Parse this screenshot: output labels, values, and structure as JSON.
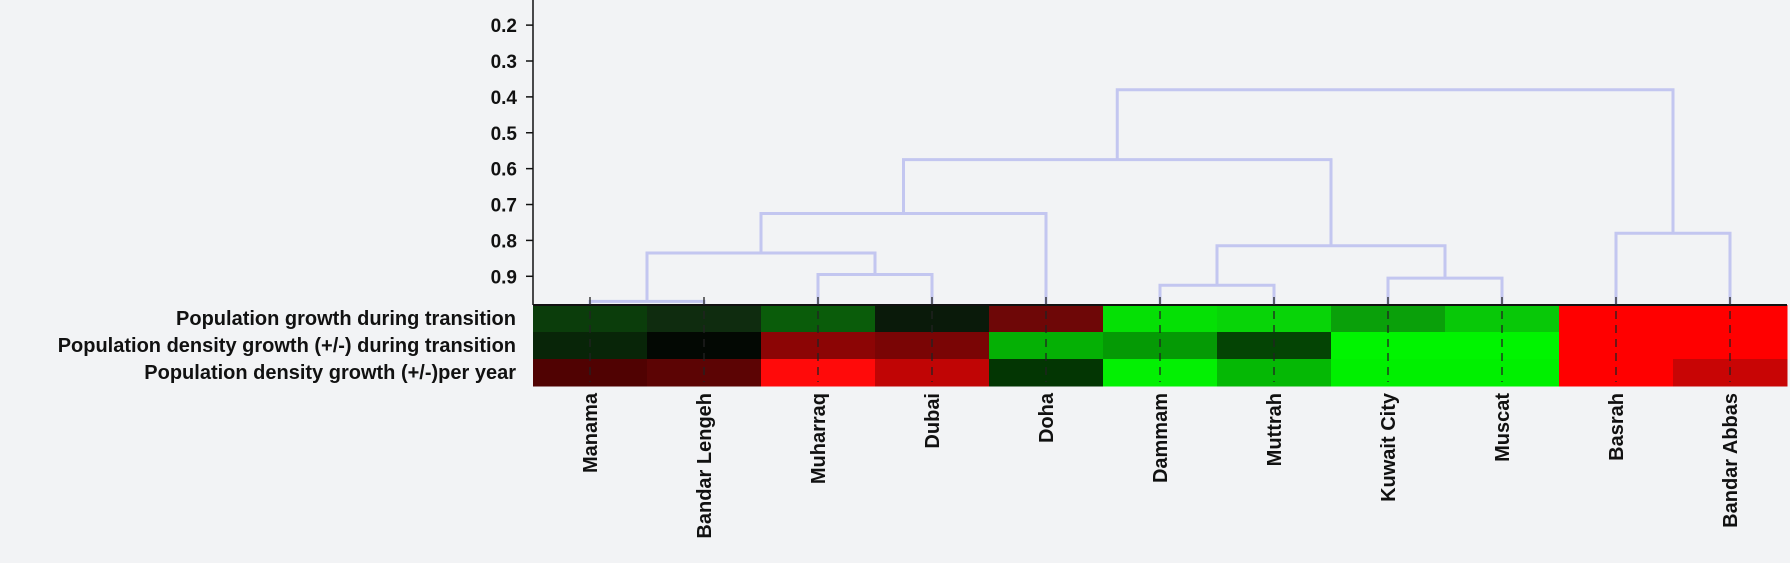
{
  "chart_data": {
    "type": "heatmap",
    "title": "",
    "xlabel": "",
    "ylabel": "",
    "dendrogram": {
      "axis_ticks": [
        "0.2",
        "0.3",
        "0.4",
        "0.5",
        "0.6",
        "0.7",
        "0.8",
        "0.9"
      ],
      "axis_range": [
        0.13,
        0.98
      ],
      "merges": [
        {
          "left": "Manama",
          "right": "Bandar Lengeh",
          "height": 0.97
        },
        {
          "left": "Muharraq",
          "right": "Dubai",
          "height": 0.895
        },
        {
          "left": "Dammam",
          "right": "Muttrah",
          "height": 0.925
        },
        {
          "left": "Kuwait City",
          "right": "Muscat",
          "height": 0.905
        },
        {
          "left": "Basrah",
          "right": "Bandar Abbas",
          "height": 0.78
        },
        {
          "left": [
            "Manama",
            "Bandar Lengeh"
          ],
          "right": [
            "Muharraq",
            "Dubai"
          ],
          "height": 0.835
        },
        {
          "left": [
            "Dammam",
            "Muttrah"
          ],
          "right": [
            "Kuwait City",
            "Muscat"
          ],
          "height": 0.815
        },
        {
          "left": [
            "Manama",
            "Bandar Lengeh",
            "Muharraq",
            "Dubai"
          ],
          "right": "Doha",
          "height": 0.725
        },
        {
          "left": [
            "Manama",
            "Bandar Lengeh",
            "Muharraq",
            "Dubai",
            "Doha"
          ],
          "right": [
            "Dammam",
            "Muttrah",
            "Kuwait City",
            "Muscat"
          ],
          "height": 0.575
        },
        {
          "left": [
            "Manama",
            "Bandar Lengeh",
            "Muharraq",
            "Dubai",
            "Doha",
            "Dammam",
            "Muttrah",
            "Kuwait City",
            "Muscat"
          ],
          "right": [
            "Basrah",
            "Bandar Abbas"
          ],
          "height": 0.38
        }
      ]
    },
    "columns": [
      "Manama",
      "Bandar Lengeh",
      "Muharraq",
      "Dubai",
      "Doha",
      "Dammam",
      "Muttrah",
      "Kuwait City",
      "Muscat",
      "Basrah",
      "Bandar Abbas"
    ],
    "rows": [
      {
        "label": "Population growth  during transition",
        "colors": [
          "#0b3d0b",
          "#0f2c0f",
          "#0a5c0a",
          "#0a1a0a",
          "#6e0707",
          "#05e005",
          "#08d408",
          "#0aa00a",
          "#08c808",
          "#ff0000",
          "#ff0000"
        ]
      },
      {
        "label": "Population density growth (+/-) during transition",
        "colors": [
          "#082508",
          "#030803",
          "#8c0505",
          "#7a0505",
          "#05b005",
          "#059a05",
          "#044404",
          "#00f400",
          "#00f400",
          "#ff0000",
          "#ff0000"
        ]
      },
      {
        "label": "Population density growth (+/-)per year",
        "colors": [
          "#500202",
          "#5c0404",
          "#ff0a0a",
          "#c00505",
          "#033603",
          "#03f003",
          "#05b805",
          "#00f000",
          "#00f000",
          "#ff0000",
          "#c80505"
        ]
      }
    ]
  }
}
